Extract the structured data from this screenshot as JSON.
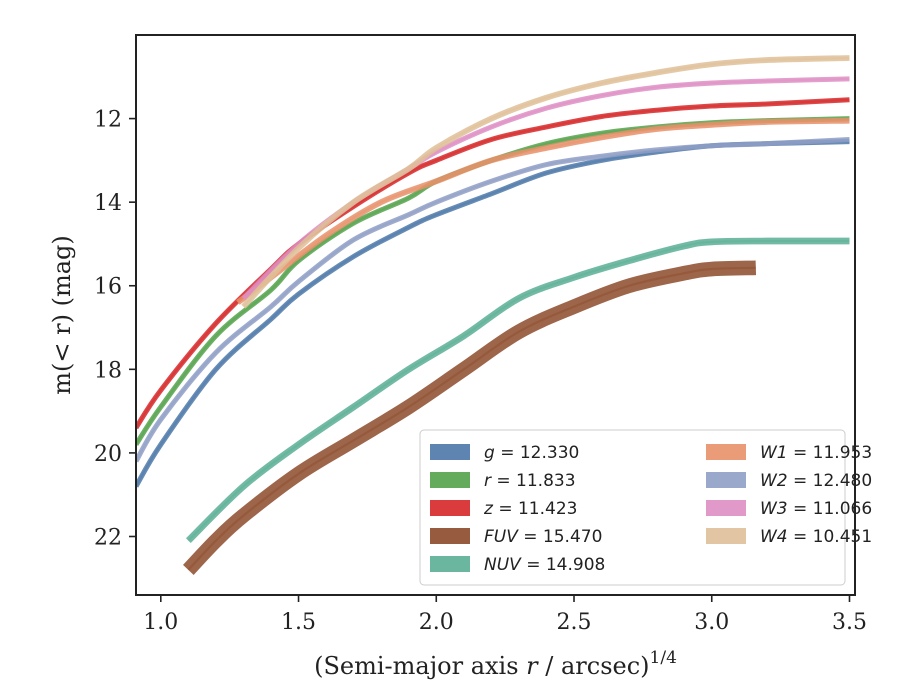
{
  "chart_data": {
    "type": "line",
    "xlabel": "(Semi-major axis r / arcsec)",
    "xlabel_italic_part": "r",
    "xlabel_superscript": "1/4",
    "ylabel": "m(< r) (mag)",
    "xlim": [
      0.91,
      3.52
    ],
    "ylim": [
      23.4,
      10.0
    ],
    "y_inverted": true,
    "xticks": [
      1.0,
      1.5,
      2.0,
      2.5,
      3.0,
      3.5
    ],
    "xtick_labels": [
      "1.0",
      "1.5",
      "2.0",
      "2.5",
      "3.0",
      "3.5"
    ],
    "yticks": [
      12,
      14,
      16,
      18,
      20,
      22
    ],
    "ytick_labels": [
      "12",
      "14",
      "16",
      "18",
      "20",
      "22"
    ],
    "grid": false,
    "legend_position": "lower-right",
    "series": [
      {
        "name": "g",
        "label_value": "= 12.330",
        "color": "#4c78a8",
        "band": 0.12,
        "x": [
          0.91,
          1.0,
          1.2,
          1.4,
          1.5,
          1.7,
          1.9,
          2.0,
          2.2,
          2.4,
          2.6,
          2.8,
          3.0,
          3.2,
          3.5
        ],
        "y": [
          20.8,
          19.8,
          18.0,
          16.8,
          16.2,
          15.3,
          14.6,
          14.3,
          13.8,
          13.3,
          13.0,
          12.8,
          12.65,
          12.6,
          12.55
        ]
      },
      {
        "name": "r",
        "label_value": "= 11.833",
        "color": "#54a24b",
        "band": 0.12,
        "x": [
          0.91,
          1.0,
          1.2,
          1.4,
          1.5,
          1.7,
          1.9,
          2.0,
          2.2,
          2.4,
          2.6,
          2.8,
          3.0,
          3.2,
          3.5
        ],
        "y": [
          19.8,
          18.9,
          17.2,
          16.1,
          15.4,
          14.5,
          13.9,
          13.5,
          13.0,
          12.6,
          12.35,
          12.2,
          12.1,
          12.05,
          12.0
        ]
      },
      {
        "name": "z",
        "label_value": "= 11.423",
        "color": "#d62728",
        "band": 0.12,
        "x": [
          0.91,
          1.0,
          1.2,
          1.4,
          1.5,
          1.7,
          1.9,
          2.0,
          2.2,
          2.4,
          2.6,
          2.8,
          3.0,
          3.2,
          3.5
        ],
        "y": [
          19.4,
          18.5,
          16.9,
          15.6,
          15.0,
          14.1,
          13.3,
          13.0,
          12.5,
          12.2,
          11.95,
          11.8,
          11.7,
          11.65,
          11.55
        ]
      },
      {
        "name": "FUV",
        "label_value": "= 15.470",
        "color": "#8c4a2a",
        "band": 0.35,
        "x": [
          1.1,
          1.2,
          1.3,
          1.5,
          1.7,
          1.9,
          2.1,
          2.3,
          2.5,
          2.7,
          2.9,
          3.0,
          3.16
        ],
        "y": [
          22.8,
          22.1,
          21.5,
          20.5,
          19.7,
          18.9,
          18.0,
          17.1,
          16.5,
          16.0,
          15.7,
          15.6,
          15.57
        ]
      },
      {
        "name": "NUV",
        "label_value": "= 14.908",
        "color": "#5aae95",
        "band": 0.16,
        "x": [
          1.1,
          1.3,
          1.5,
          1.7,
          1.9,
          2.1,
          2.3,
          2.5,
          2.7,
          2.9,
          3.0,
          3.2,
          3.5
        ],
        "y": [
          22.1,
          20.8,
          19.8,
          18.9,
          18.0,
          17.2,
          16.3,
          15.8,
          15.4,
          15.05,
          14.95,
          14.93,
          14.93
        ]
      },
      {
        "name": "W1",
        "label_value": "= 11.953",
        "color": "#e8916a",
        "band": 0.14,
        "x": [
          1.28,
          1.4,
          1.6,
          1.8,
          2.0,
          2.2,
          2.4,
          2.6,
          2.8,
          3.0,
          3.2,
          3.5
        ],
        "y": [
          16.4,
          15.8,
          14.8,
          14.0,
          13.5,
          13.0,
          12.7,
          12.45,
          12.25,
          12.15,
          12.08,
          12.05
        ]
      },
      {
        "name": "W2",
        "label_value": "= 12.480",
        "color": "#8e9ec5",
        "band": 0.12,
        "x": [
          0.91,
          1.0,
          1.2,
          1.4,
          1.5,
          1.7,
          1.9,
          2.0,
          2.2,
          2.4,
          2.6,
          2.8,
          3.0,
          3.2,
          3.5
        ],
        "y": [
          20.2,
          19.2,
          17.6,
          16.5,
          15.9,
          14.9,
          14.3,
          14.0,
          13.5,
          13.1,
          12.9,
          12.75,
          12.65,
          12.6,
          12.5
        ]
      },
      {
        "name": "W3",
        "label_value": "= 11.066",
        "color": "#de8ec4",
        "band": 0.12,
        "x": [
          1.3,
          1.5,
          1.7,
          1.9,
          2.0,
          2.2,
          2.4,
          2.6,
          2.8,
          3.0,
          3.2,
          3.5
        ],
        "y": [
          16.3,
          15.0,
          14.0,
          13.2,
          12.8,
          12.2,
          11.75,
          11.45,
          11.25,
          11.15,
          11.1,
          11.05
        ]
      },
      {
        "name": "W4",
        "label_value": "= 10.451",
        "color": "#dfbf98",
        "band": 0.14,
        "x": [
          1.3,
          1.5,
          1.7,
          1.9,
          2.0,
          2.2,
          2.4,
          2.6,
          2.8,
          3.0,
          3.2,
          3.5
        ],
        "y": [
          16.5,
          15.1,
          14.0,
          13.2,
          12.7,
          12.0,
          11.5,
          11.15,
          10.9,
          10.7,
          10.6,
          10.55
        ]
      }
    ]
  }
}
